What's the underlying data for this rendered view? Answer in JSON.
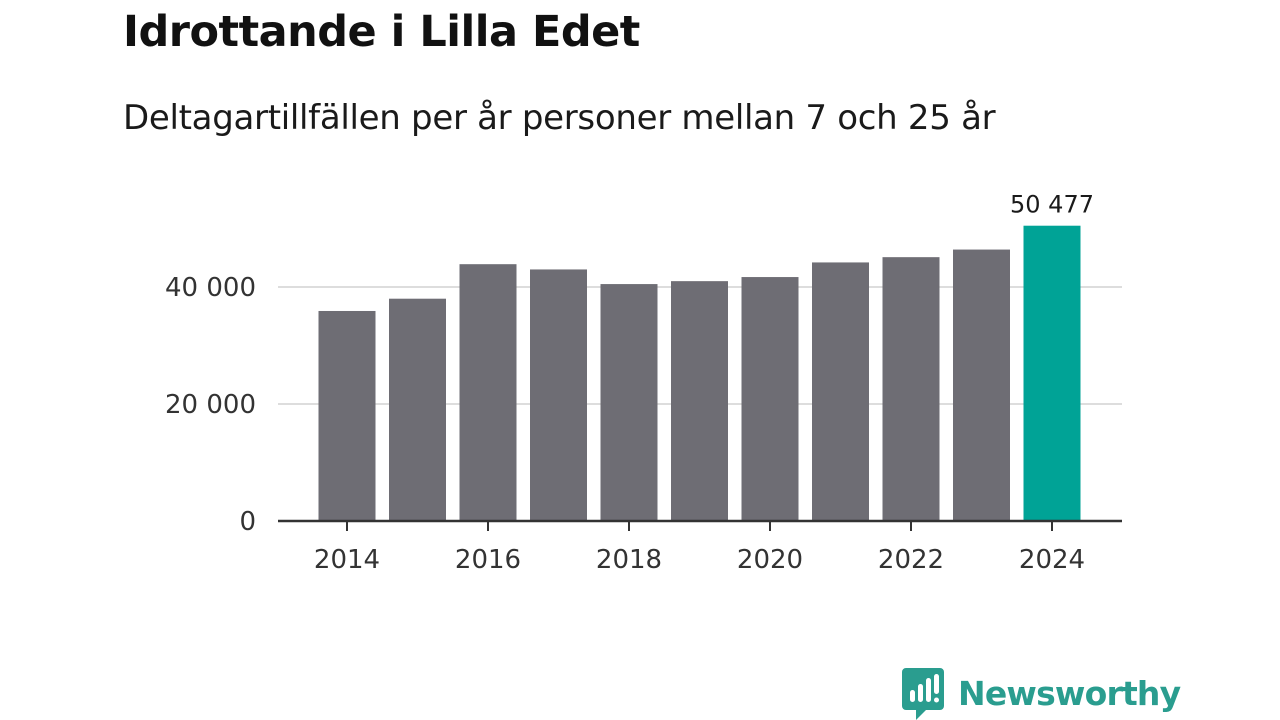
{
  "header": {
    "title": "Idrottande i Lilla Edet",
    "subtitle": "Deltagartillfällen per år personer mellan 7 och 25 år"
  },
  "chart_data": {
    "type": "bar",
    "title": "Idrottande i Lilla Edet",
    "subtitle": "Deltagartillfällen per år personer mellan 7 och 25 år",
    "xlabel": "",
    "ylabel": "",
    "categories": [
      "2014",
      "2015",
      "2016",
      "2017",
      "2018",
      "2019",
      "2020",
      "2021",
      "2022",
      "2023",
      "2024"
    ],
    "values": [
      35900,
      38000,
      43900,
      43000,
      40500,
      41000,
      41700,
      44200,
      45100,
      46400,
      50477
    ],
    "x_tick_labels": [
      "2014",
      "2016",
      "2018",
      "2020",
      "2022",
      "2024"
    ],
    "y_ticks": [
      0,
      20000,
      40000
    ],
    "y_tick_labels": [
      "0",
      "20 000",
      "40 000"
    ],
    "ylim": [
      0,
      54000
    ],
    "grid": true,
    "highlight_index": 10,
    "highlight_label": "50 477",
    "colors": {
      "bar": "#6e6d74",
      "highlight": "#00a396",
      "grid": "#dddddd",
      "axis": "#333333"
    }
  },
  "footer": {
    "brand": "Newsworthy",
    "brand_icon": "newsworthy-bar-chart-icon",
    "brand_color": "#2a9d8f"
  }
}
